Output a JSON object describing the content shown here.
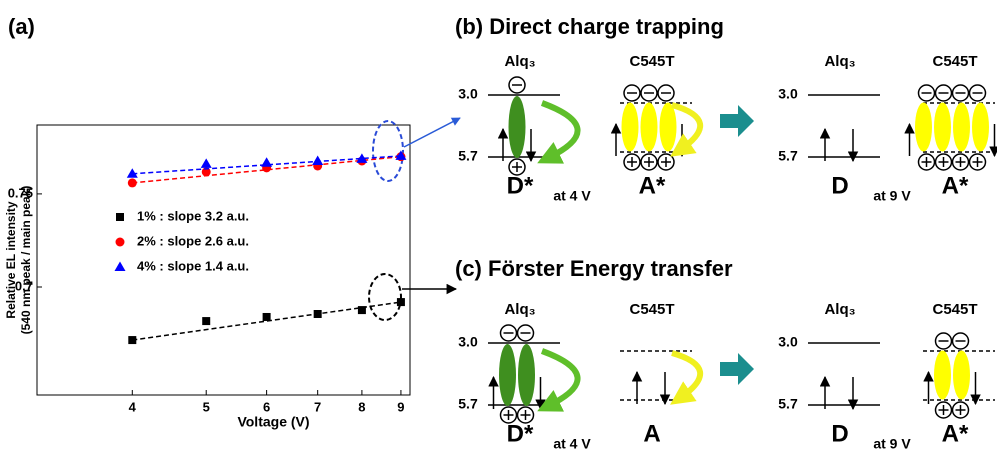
{
  "panel_label": "(a)",
  "chart_data": {
    "type": "scatter",
    "xlabel": "Voltage (V)",
    "ylabel": [
      "Relative EL intensity",
      "(540 nm peak / main peak)"
    ],
    "x": [
      4,
      5,
      6,
      7,
      8,
      9
    ],
    "xlim": [
      3,
      9.25
    ],
    "xticks": [
      4,
      5,
      6,
      7,
      8,
      9
    ],
    "xscale": "log",
    "ylim": [
      0.642,
      0.787
    ],
    "yticks": [
      0.7,
      0.75
    ],
    "fit_lines": true,
    "legend": "left",
    "series": [
      {
        "name": "1% : slope 3.2 a.u.",
        "color": "#000000",
        "marker": "square",
        "values": [
          0.6715,
          0.6817,
          0.6839,
          0.6855,
          0.6876,
          0.6919
        ]
      },
      {
        "name": "2% : slope 2.6 a.u.",
        "color": "#ff0000",
        "marker": "circle",
        "values": [
          0.7559,
          0.7618,
          0.764,
          0.765,
          0.7677,
          0.77
        ]
      },
      {
        "name": "4% : slope 1.4 a.u.",
        "color": "#0000ff",
        "marker": "triangle",
        "values": [
          0.7608,
          0.7661,
          0.7667,
          0.7677,
          0.7688,
          0.7704
        ]
      }
    ]
  },
  "panels": [
    {
      "title": "(b) Direct charge trapping",
      "columns": [
        {
          "molecule": "Alq₃",
          "lumo": "3.0",
          "homo": "5.7",
          "state": "D*",
          "note": "at 4 V"
        },
        {
          "molecule": "C545T",
          "state": "A*"
        },
        {
          "molecule": "Alq₃",
          "lumo": "3.0",
          "homo": "5.7",
          "state": "D",
          "note": "at 9 V"
        },
        {
          "molecule": "C545T",
          "state": "A*"
        }
      ]
    },
    {
      "title": "(c) Förster Energy transfer",
      "columns": [
        {
          "molecule": "Alq₃",
          "lumo": "3.0",
          "homo": "5.7",
          "state": "D*",
          "note": "at 4 V"
        },
        {
          "molecule": "C545T",
          "state": "A"
        },
        {
          "molecule": "Alq₃",
          "lumo": "3.0",
          "homo": "5.7",
          "state": "D",
          "note": "at 9 V"
        },
        {
          "molecule": "C545T",
          "state": "A*"
        }
      ]
    }
  ]
}
